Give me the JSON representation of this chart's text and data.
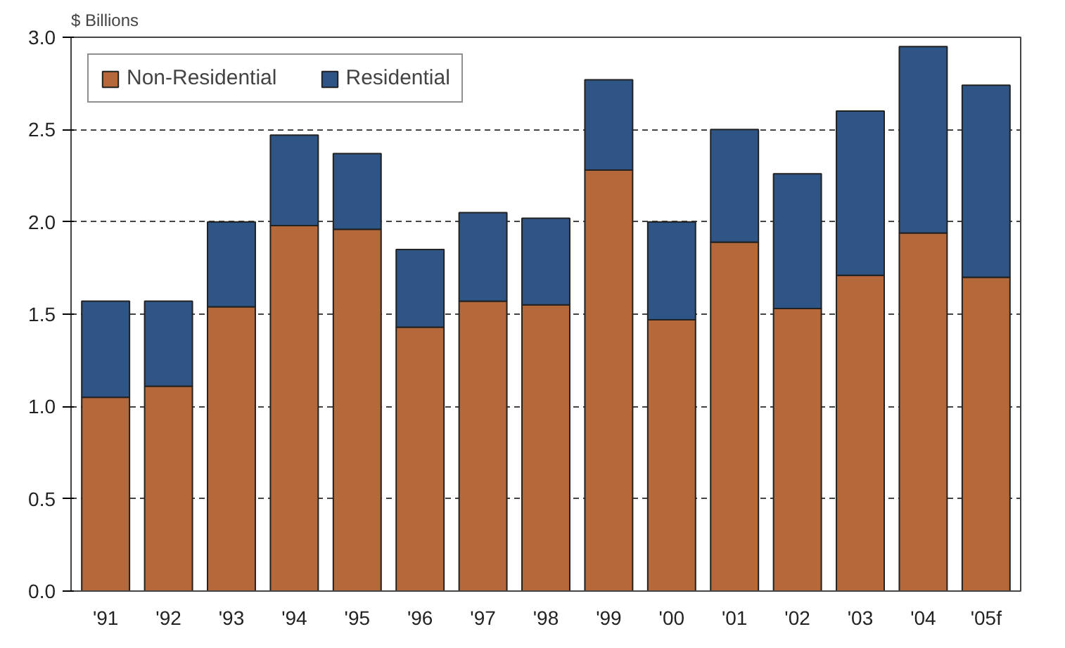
{
  "chart_data": {
    "type": "bar",
    "stacked": true,
    "ylabel": "$ Billions",
    "categories": [
      "'91",
      "'92",
      "'93",
      "'94",
      "'95",
      "'96",
      "'97",
      "'98",
      "'99",
      "'00",
      "'01",
      "'02",
      "'03",
      "'04",
      "'05f"
    ],
    "series": [
      {
        "name": "Non-Residential",
        "color": "#b5693a",
        "values": [
          1.05,
          1.11,
          1.54,
          1.98,
          1.96,
          1.43,
          1.57,
          1.55,
          2.28,
          1.47,
          1.89,
          1.53,
          1.71,
          1.94,
          1.7
        ]
      },
      {
        "name": "Residential",
        "color": "#2e5585",
        "values": [
          0.52,
          0.46,
          0.46,
          0.49,
          0.41,
          0.42,
          0.48,
          0.47,
          0.49,
          0.53,
          0.61,
          0.73,
          0.89,
          1.01,
          1.04
        ]
      }
    ],
    "ylim": [
      0,
      3.0
    ],
    "yticks": [
      {
        "value": 0,
        "label": "0.0"
      },
      0.5,
      {
        "value": 1,
        "label": "1.0"
      },
      1.5,
      {
        "value": 2,
        "label": "2.0"
      },
      2.5,
      {
        "value": 3,
        "label": "3.0"
      }
    ],
    "grid": "y",
    "legend": "top left"
  }
}
